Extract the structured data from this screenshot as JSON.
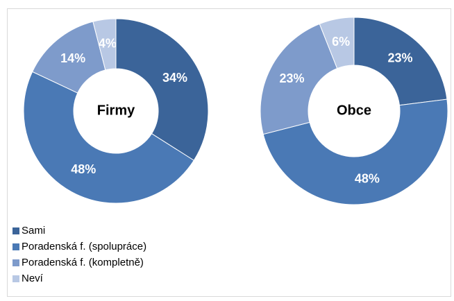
{
  "chart_data": [
    {
      "type": "donut",
      "title": "Firmy",
      "categories": [
        "Sami",
        "Poradenská f. (spolupráce)",
        "Poradenská f. (kompletně)",
        "Neví"
      ],
      "values": [
        34,
        48,
        14,
        4
      ],
      "value_labels": [
        "34%",
        "48%",
        "14%",
        "4%"
      ],
      "colors": [
        "#3b6499",
        "#4a79b5",
        "#7e9bcb",
        "#b8c8e4"
      ],
      "legend": "bottom-left"
    },
    {
      "type": "donut",
      "title": "Obce",
      "categories": [
        "Sami",
        "Poradenská f. (spolupráce)",
        "Poradenská f. (kompletně)",
        "Neví"
      ],
      "values": [
        23,
        48,
        23,
        6
      ],
      "value_labels": [
        "23%",
        "48%",
        "23%",
        "6%"
      ],
      "colors": [
        "#3b6499",
        "#4a79b5",
        "#7e9bcb",
        "#b8c8e4"
      ]
    }
  ]
}
